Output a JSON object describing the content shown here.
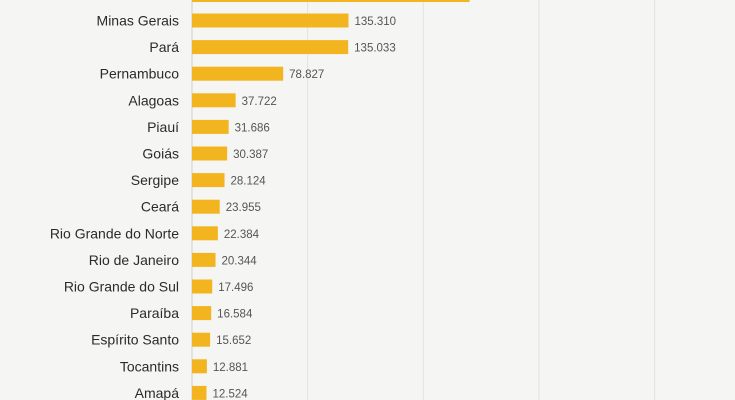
{
  "chart_data": {
    "type": "bar",
    "orientation": "horizontal",
    "categories": [
      "Minas Gerais",
      "Pará",
      "Pernambuco",
      "Alagoas",
      "Piauí",
      "Goiás",
      "Sergipe",
      "Ceará",
      "Rio Grande do Norte",
      "Rio de Janeiro",
      "Rio Grande do Sul",
      "Paraíba",
      "Espírito Santo",
      "Tocantins",
      "Amapá"
    ],
    "values": [
      135310,
      135033,
      78827,
      37722,
      31686,
      30387,
      28124,
      23955,
      22384,
      20344,
      17496,
      16584,
      15652,
      12881,
      12524
    ],
    "value_labels": [
      "135.310",
      "135.033",
      "78.827",
      "37.722",
      "31.686",
      "30.387",
      "28.124",
      "23.955",
      "22.384",
      "20.344",
      "17.496",
      "16.584",
      "15.652",
      "12.881",
      "12.524"
    ],
    "partial_top_bar": {
      "value": 240000
    },
    "xlim": [
      0,
      460000
    ],
    "gridlines": [
      100000,
      200000,
      300000,
      400000
    ],
    "grid": true,
    "title": "",
    "xlabel": "",
    "ylabel": ""
  },
  "colors": {
    "bar": "#f2b51f",
    "background": "#f5f5f3",
    "grid": "#e2e2df",
    "axis": "#cfcfcc",
    "category_text": "#2b2b2b",
    "value_text": "#555555"
  }
}
